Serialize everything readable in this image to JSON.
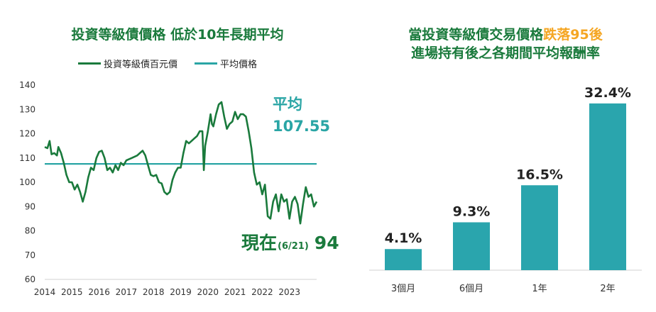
{
  "left": {
    "title": "投資等級債價格 低於10年長期平均",
    "legend": [
      {
        "label": "投資等級債百元價",
        "color": "#1a7a3c"
      },
      {
        "label": "平均價格",
        "color": "#2aa5a5"
      }
    ],
    "avg_label": "平均",
    "avg_value_label": "107.55",
    "now_label_main": "現在",
    "now_label_date": "(6/21)",
    "now_value_label": "94"
  },
  "right": {
    "title_part1": "當投資等級債交易價格",
    "title_highlight": "跌落95後",
    "title_line2": "進場持有後之各期間平均報酬率"
  },
  "chart_data": [
    {
      "type": "line",
      "title": "投資等級債價格 低於10年長期平均",
      "ylim": [
        60,
        140
      ],
      "yticks": [
        60,
        70,
        80,
        90,
        100,
        110,
        120,
        130,
        140
      ],
      "xlim": [
        2014,
        2024
      ],
      "xticks": [
        2014,
        2015,
        2016,
        2017,
        2018,
        2019,
        2020,
        2021,
        2022,
        2023
      ],
      "series": [
        {
          "name": "投資等級債百元價",
          "color": "#1a7a3c",
          "x": [
            2014.0,
            2014.1,
            2014.18,
            2014.25,
            2014.35,
            2014.45,
            2014.5,
            2014.6,
            2014.7,
            2014.8,
            2014.9,
            2015.0,
            2015.1,
            2015.2,
            2015.3,
            2015.4,
            2015.5,
            2015.6,
            2015.7,
            2015.8,
            2015.9,
            2016.0,
            2016.1,
            2016.2,
            2016.3,
            2016.4,
            2016.5,
            2016.6,
            2016.7,
            2016.8,
            2016.9,
            2017.0,
            2017.2,
            2017.4,
            2017.5,
            2017.6,
            2017.7,
            2017.8,
            2017.9,
            2018.0,
            2018.1,
            2018.2,
            2018.3,
            2018.4,
            2018.5,
            2018.6,
            2018.7,
            2018.8,
            2018.9,
            2019.0,
            2019.1,
            2019.2,
            2019.3,
            2019.4,
            2019.5,
            2019.6,
            2019.7,
            2019.8,
            2019.85,
            2019.9,
            2020.0,
            2020.1,
            2020.15,
            2020.2,
            2020.3,
            2020.4,
            2020.5,
            2020.6,
            2020.7,
            2020.8,
            2020.9,
            2021.0,
            2021.1,
            2021.2,
            2021.3,
            2021.4,
            2021.5,
            2021.6,
            2021.7,
            2021.8,
            2021.9,
            2022.0,
            2022.1,
            2022.2,
            2022.3,
            2022.4,
            2022.5,
            2022.6,
            2022.7,
            2022.8,
            2022.9,
            2023.0,
            2023.1,
            2023.2,
            2023.3,
            2023.4,
            2023.5,
            2023.6,
            2023.7,
            2023.8,
            2023.9,
            2024.0
          ],
          "values": [
            114.5,
            114,
            117,
            111.5,
            112,
            111,
            114.5,
            112,
            108,
            103,
            100,
            100,
            97,
            99,
            96,
            92,
            96,
            102,
            106,
            105,
            110,
            112.5,
            113,
            110,
            105,
            106,
            104,
            107,
            105,
            108,
            107,
            109,
            110,
            111,
            112,
            113,
            111,
            107,
            103,
            102.5,
            103,
            100,
            99.5,
            96,
            95,
            96,
            101,
            104,
            106,
            106,
            112,
            117,
            116,
            117,
            118,
            119,
            121,
            121,
            105,
            115,
            121,
            128,
            124,
            123,
            128,
            132,
            133,
            127,
            122,
            124,
            125,
            129,
            126,
            128,
            128,
            127,
            121,
            114,
            104,
            99,
            100,
            95,
            99,
            86,
            85,
            92,
            95,
            88,
            95,
            92,
            93,
            85,
            92,
            94,
            91,
            83,
            91,
            98,
            94,
            95,
            90,
            92
          ]
        },
        {
          "name": "平均價格",
          "color": "#2aa5a5",
          "x": [
            2014,
            2024
          ],
          "values": [
            107.55,
            107.55
          ]
        }
      ]
    },
    {
      "type": "bar",
      "title": "當投資等級債交易價格跌落95後 進場持有後之各期間平均報酬率",
      "categories": [
        "3個月",
        "6個月",
        "1年",
        "2年"
      ],
      "values": [
        4.1,
        9.3,
        16.5,
        32.4
      ],
      "value_labels": [
        "4.1%",
        "9.3%",
        "16.5%",
        "32.4%"
      ],
      "ylim": [
        0,
        35
      ],
      "color": "#2aa5ad"
    }
  ]
}
